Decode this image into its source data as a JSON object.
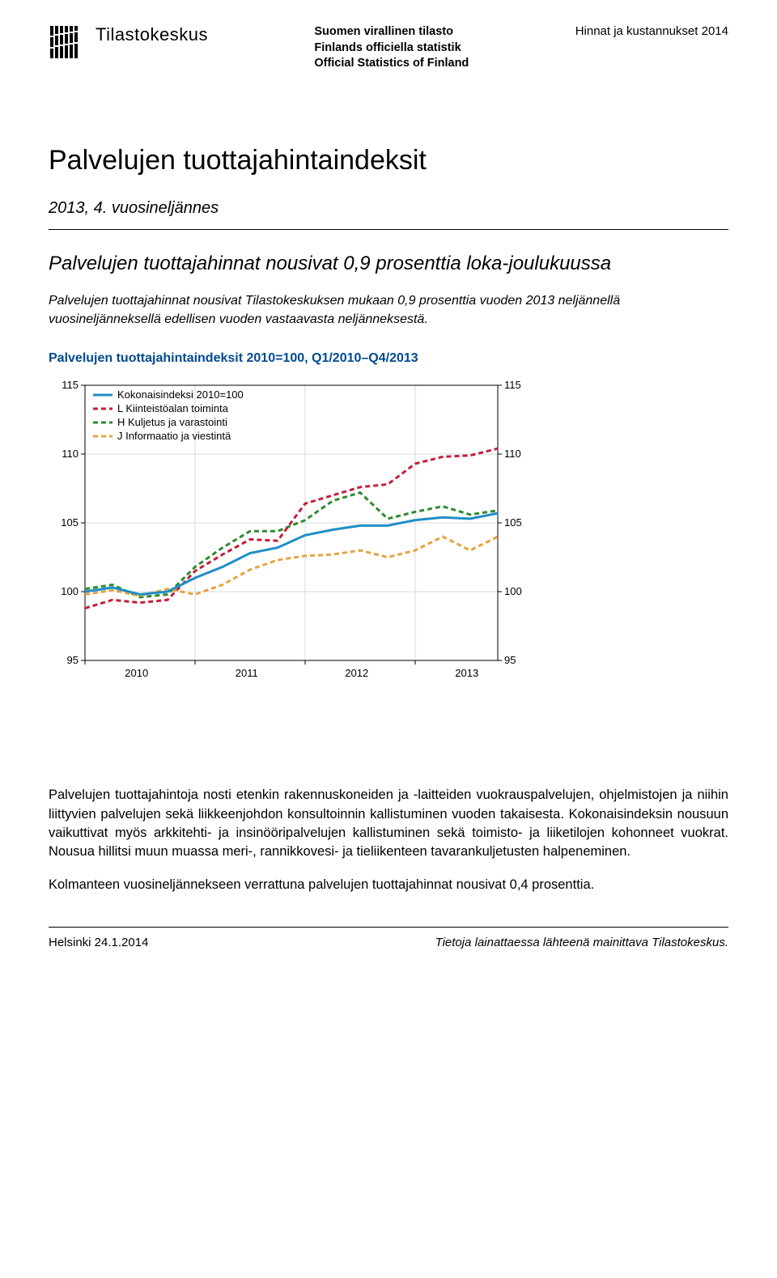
{
  "header": {
    "logo_name": "Tilastokeskus",
    "official_title_line1": "Suomen virallinen tilasto",
    "official_title_line2": "Finlands officiella statistik",
    "official_title_line3": "Official Statistics of Finland",
    "category": "Hinnat ja kustannukset 2014"
  },
  "title": {
    "main": "Palvelujen tuottajahintaindeksit",
    "sub": "2013, 4. vuosineljännes"
  },
  "lead": {
    "heading": "Palvelujen tuottajahinnat nousivat 0,9 prosenttia loka-joulukuussa",
    "paragraph": "Palvelujen tuottajahinnat nousivat Tilastokeskuksen mukaan 0,9 prosenttia vuoden 2013 neljännellä vuosineljänneksellä edellisen vuoden vastaavasta neljänneksestä."
  },
  "chart": {
    "title": "Palvelujen tuottajahintaindeksit 2010=100, Q1/2010–Q4/2013",
    "type": "line",
    "background_color": "#ffffff",
    "grid_color": "#d9d9d9",
    "axis_color": "#000000",
    "ylim": [
      95,
      115
    ],
    "ytick_step": 5,
    "yticks": [
      95,
      100,
      105,
      110,
      115
    ],
    "xticks": [
      "2010",
      "2011",
      "2012",
      "2013"
    ],
    "legend": [
      {
        "label": "Kokonaisindeksi 2010=100",
        "color": "#1f8ec7",
        "dash": "none"
      },
      {
        "label": "L Kiinteistöalan toiminta",
        "color": "#c41e3a",
        "dash": "6,4"
      },
      {
        "label": "H Kuljetus ja varastointi",
        "color": "#2e8b2e",
        "dash": "6,4"
      },
      {
        "label": "J Informaatio ja viestintä",
        "color": "#e8a33d",
        "dash": "6,4"
      }
    ],
    "series": {
      "kokonais": [
        100.0,
        100.3,
        99.8,
        100.0,
        101.0,
        101.8,
        102.8,
        103.2,
        104.1,
        104.5,
        104.8,
        104.8,
        105.2,
        105.4,
        105.3,
        105.7
      ],
      "kiinteisto": [
        98.8,
        99.4,
        99.2,
        99.4,
        101.5,
        102.7,
        103.8,
        103.7,
        106.4,
        107.0,
        107.6,
        107.8,
        109.3,
        109.8,
        109.9,
        110.4
      ],
      "kuljetus": [
        100.2,
        100.5,
        99.6,
        99.8,
        101.8,
        103.2,
        104.4,
        104.4,
        105.2,
        106.6,
        107.2,
        105.3,
        105.8,
        106.2,
        105.6,
        105.9
      ],
      "informaatio": [
        99.8,
        100.1,
        99.7,
        100.2,
        99.8,
        100.5,
        101.6,
        102.3,
        102.6,
        102.7,
        103.0,
        102.5,
        103.0,
        104.0,
        103.0,
        104.0
      ]
    }
  },
  "body": {
    "p1": "Palvelujen tuottajahintoja nosti etenkin rakennuskoneiden ja -laitteiden vuokrauspalvelujen, ohjelmistojen ja niihin liittyvien palvelujen sekä liikkeenjohdon konsultoinnin kallistuminen vuoden takaisesta. Kokonaisindeksin nousuun vaikuttivat myös arkkitehti- ja insinööripalvelujen kallistuminen sekä toimisto- ja liiketilojen kohonneet vuokrat. Nousua hillitsi muun muassa meri-, rannikkovesi- ja tieliikenteen tavarankuljetusten halpeneminen.",
    "p2": "Kolmanteen vuosineljännekseen verrattuna palvelujen tuottajahinnat nousivat 0,4 prosenttia."
  },
  "footer": {
    "left": "Helsinki 24.1.2014",
    "right": "Tietoja lainattaessa lähteenä mainittava Tilastokeskus."
  }
}
